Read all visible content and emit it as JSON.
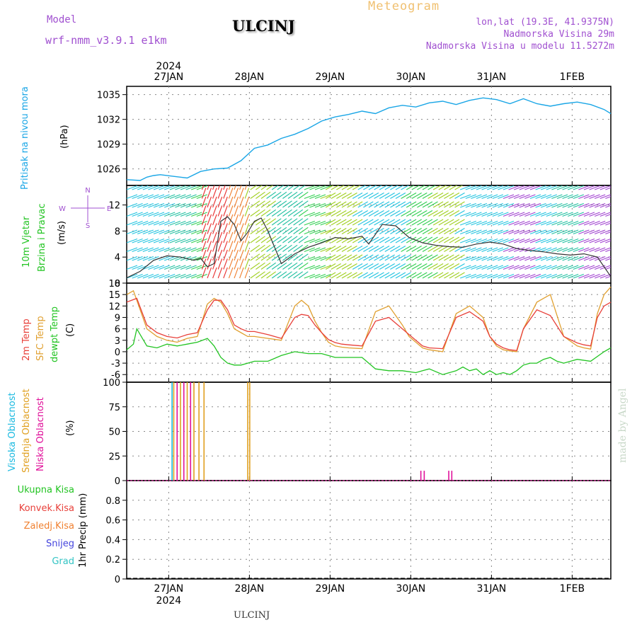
{
  "header": {
    "model_label": "Model",
    "model_name": "wrf-nmm_v3.9.1 e1km",
    "station": "ULCINJ",
    "product": "Meteogram",
    "lonlat": "lon,lat (19.3E, 41.9375N)",
    "altitude": "Nadmorska Visina 29m",
    "model_altitude": "Nadmorska Visina u modelu 11.5272m",
    "credit": "made by Angel",
    "footer_station": "ULCINJ"
  },
  "colors": {
    "pressure": "#1aa6e6",
    "temp2m": "#e8403a",
    "sfc_temp": "#e0a030",
    "dewpoint": "#22c422",
    "high_cloud": "#19b9e0",
    "mid_cloud": "#e0a020",
    "low_cloud": "#e0109a",
    "total_precip": "#22c422",
    "conv_precip": "#e8403a",
    "frozen_precip": "#f08030",
    "snow": "#4444dd",
    "graupel": "#33c4c4",
    "purple": "#a050d0",
    "orange": "#f0a830"
  },
  "chart_data": [
    {
      "type": "line",
      "name": "pressure",
      "x_ticks": [
        "27JAN",
        "28JAN",
        "29JAN",
        "30JAN",
        "31JAN",
        "1FEB"
      ],
      "x_year": "2024",
      "x_range": [
        0,
        144
      ],
      "ylim": [
        1024,
        1036
      ],
      "y_ticks": [
        1026,
        1029,
        1032,
        1035
      ],
      "ylabel": "(hPa)",
      "title_left": "Pritisak na nivou mora",
      "series": [
        {
          "x": [
            0,
            4,
            6,
            8,
            10,
            14,
            18,
            22,
            26,
            30,
            34,
            38,
            42,
            46,
            50,
            54,
            58,
            62,
            66,
            70,
            74,
            78,
            82,
            86,
            90,
            94,
            98,
            102,
            106,
            110,
            114,
            118,
            122,
            126,
            130,
            134,
            138,
            142,
            144
          ],
          "values": [
            1024.7,
            1024.6,
            1025.0,
            1025.2,
            1025.3,
            1025.1,
            1024.9,
            1025.7,
            1026.0,
            1026.1,
            1027.0,
            1028.5,
            1028.9,
            1029.7,
            1030.2,
            1030.9,
            1031.8,
            1032.3,
            1032.6,
            1033.0,
            1032.7,
            1033.4,
            1033.7,
            1033.5,
            1034.0,
            1034.2,
            1033.8,
            1034.3,
            1034.6,
            1034.4,
            1033.9,
            1034.5,
            1033.9,
            1033.6,
            1033.9,
            1034.1,
            1033.8,
            1033.2,
            1032.7
          ]
        }
      ]
    },
    {
      "type": "line",
      "name": "wind",
      "x_range": [
        0,
        144
      ],
      "ylim": [
        0,
        15
      ],
      "y_ticks": [
        0,
        4,
        8,
        12
      ],
      "ylabel": "(m/s)",
      "title_left": "10m Vjetar",
      "title_left2": "Brzina i Pravac",
      "compass": {
        "n": "N",
        "s": "S",
        "w": "W",
        "e": "E"
      },
      "series": [
        {
          "name": "speed",
          "x": [
            0,
            4,
            8,
            12,
            16,
            20,
            22,
            24,
            26,
            28,
            30,
            32,
            34,
            36,
            38,
            40,
            42,
            46,
            50,
            54,
            58,
            62,
            66,
            70,
            72,
            76,
            80,
            84,
            88,
            92,
            96,
            100,
            104,
            108,
            112,
            116,
            120,
            124,
            128,
            132,
            136,
            140,
            144
          ],
          "values": [
            0.8,
            1.8,
            3.5,
            4.2,
            4.0,
            3.5,
            3.8,
            2.5,
            3.0,
            9.5,
            10.2,
            9.0,
            6.5,
            7.8,
            9.5,
            10.0,
            8.0,
            3.0,
            4.5,
            5.5,
            6.2,
            7.0,
            6.8,
            7.2,
            6.0,
            9.0,
            8.8,
            7.0,
            6.2,
            5.8,
            5.6,
            5.5,
            6.0,
            6.3,
            6.0,
            5.3,
            5.0,
            4.8,
            4.5,
            4.3,
            4.5,
            4.0,
            1.0
          ]
        }
      ]
    },
    {
      "type": "line",
      "name": "temperature",
      "x_range": [
        0,
        144
      ],
      "ylim": [
        -8,
        18
      ],
      "y_ticks": [
        -6,
        -3,
        0,
        3,
        6,
        9,
        12,
        15,
        18
      ],
      "ylabel": "(C)",
      "title_left": "2m Temp",
      "title_left2": "SFC Temp",
      "title_left3": "dewpt Temp",
      "series": [
        {
          "name": "2m Temp",
          "x": [
            0,
            3,
            6,
            9,
            12,
            15,
            18,
            21,
            24,
            26,
            28,
            30,
            32,
            34,
            36,
            38,
            42,
            46,
            50,
            52,
            54,
            56,
            58,
            60,
            62,
            64,
            66,
            70,
            74,
            78,
            82,
            84,
            86,
            88,
            90,
            94,
            98,
            102,
            106,
            108,
            110,
            112,
            114,
            116,
            118,
            122,
            126,
            130,
            134,
            136,
            138,
            140,
            142,
            144
          ],
          "values": [
            13,
            14,
            7,
            5,
            4,
            3.6,
            4.5,
            5,
            11,
            13.5,
            13.5,
            11,
            7,
            6,
            5.3,
            5.3,
            4.5,
            3.5,
            9,
            9.8,
            9.5,
            7,
            5,
            3.2,
            2.4,
            2,
            1.8,
            1.5,
            8,
            9,
            6,
            4.5,
            3,
            1.5,
            1,
            0.8,
            9,
            10.5,
            8,
            4,
            2,
            1,
            0.5,
            0.3,
            6,
            11,
            9.5,
            4,
            2.3,
            1.8,
            1.5,
            9,
            12,
            13
          ]
        },
        {
          "name": "SFC Temp",
          "x": [
            0,
            2,
            4,
            6,
            9,
            12,
            15,
            18,
            21,
            24,
            26,
            28,
            30,
            32,
            34,
            36,
            38,
            42,
            46,
            50,
            52,
            54,
            56,
            58,
            60,
            62,
            64,
            66,
            70,
            74,
            78,
            82,
            84,
            86,
            88,
            90,
            94,
            98,
            102,
            106,
            108,
            110,
            112,
            114,
            116,
            118,
            122,
            126,
            130,
            134,
            136,
            138,
            140,
            142,
            144
          ],
          "values": [
            15,
            16,
            11,
            6,
            4,
            3,
            2.5,
            3.5,
            4,
            12.5,
            14,
            13,
            10,
            6,
            5,
            4,
            4,
            3.5,
            3,
            12,
            13.5,
            12,
            8,
            5,
            2.5,
            1.5,
            1.2,
            1,
            0.8,
            10.5,
            12,
            7,
            4,
            2.5,
            1,
            0.5,
            0,
            10,
            12,
            9,
            4,
            1.5,
            0.5,
            0.2,
            0,
            6,
            13,
            15,
            4,
            1.5,
            1,
            0.7,
            10,
            15,
            17
          ]
        },
        {
          "name": "dewpt Temp",
          "x": [
            0,
            2,
            3,
            5,
            6,
            9,
            12,
            15,
            18,
            21,
            24,
            26,
            28,
            30,
            32,
            34,
            36,
            38,
            42,
            46,
            50,
            54,
            58,
            62,
            66,
            70,
            74,
            78,
            82,
            86,
            88,
            90,
            94,
            98,
            100,
            102,
            104,
            106,
            108,
            110,
            112,
            114,
            116,
            118,
            120,
            122,
            124,
            126,
            128,
            130,
            134,
            138,
            142,
            144
          ],
          "values": [
            0.5,
            2,
            6,
            3,
            1.5,
            1,
            2,
            1.5,
            2,
            2.5,
            3.5,
            1.5,
            -1.5,
            -3,
            -3.5,
            -3.5,
            -3,
            -2.5,
            -2.5,
            -1,
            0,
            -0.5,
            -0.5,
            -1.5,
            -1.5,
            -1.5,
            -4.5,
            -5,
            -5,
            -5.5,
            -5,
            -4.5,
            -6,
            -5,
            -4,
            -5,
            -4.5,
            -6,
            -5,
            -6,
            -5.5,
            -6,
            -5,
            -3.5,
            -3,
            -3,
            -2,
            -1.5,
            -2.5,
            -3,
            -2,
            -2.5,
            0,
            1
          ]
        }
      ]
    },
    {
      "type": "bar",
      "name": "cloud",
      "x_range": [
        0,
        144
      ],
      "ylim": [
        0,
        100
      ],
      "y_ticks": [
        0,
        25,
        50,
        75,
        100
      ],
      "ylabel": "(%)",
      "title_left": "Visoka Oblacnost",
      "title_left2": "Srednja Oblacnost",
      "title_left3": "Niska Oblacnost",
      "series": [
        {
          "name": "Visoka Oblacnost",
          "x": [
            13.5
          ],
          "values": [
            100
          ]
        },
        {
          "name": "Srednja Oblacnost",
          "x": [
            14,
            16,
            18,
            20,
            21.5,
            23,
            36,
            36.6
          ],
          "values": [
            100,
            100,
            100,
            100,
            100,
            100,
            100,
            100
          ]
        },
        {
          "name": "Niska Oblacnost",
          "x": [
            15,
            17,
            19,
            87.5,
            88.5,
            95.8,
            96.7
          ],
          "values": [
            100,
            100,
            100,
            10,
            10,
            10,
            10
          ]
        }
      ]
    },
    {
      "type": "bar",
      "name": "precip",
      "x_range": [
        0,
        144
      ],
      "ylim": [
        0,
        1.0
      ],
      "y_ticks": [
        0,
        0.2,
        0.4,
        0.6,
        0.8
      ],
      "ylabel": "1hr Precip (mm)",
      "legend": [
        "Ukupna Kisa",
        "Konvek.Kisa",
        "Zaledj.Kisa",
        "Snijeg",
        "Grad"
      ],
      "series": []
    }
  ]
}
